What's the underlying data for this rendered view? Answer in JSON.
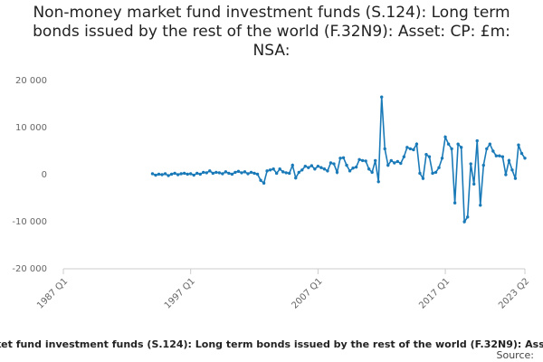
{
  "chart_data": {
    "type": "line",
    "title": "Non-money market fund investment funds (S.124): Long term bonds issued by the rest of the world (F.32N9): Asset: CP: £m: NSA:",
    "source": "Source:",
    "xlim": [
      "1987 Q1",
      "2023 Q2"
    ],
    "xticks": [
      "1987 Q1",
      "1997 Q1",
      "2007 Q1",
      "2017 Q1",
      "2023 Q2"
    ],
    "ylim": [
      -20000,
      20000
    ],
    "yticks": [
      {
        "value": -20000,
        "label": "-20 000"
      },
      {
        "value": -10000,
        "label": "-10 000"
      },
      0,
      {
        "value": 10000,
        "label": "10 000"
      },
      {
        "value": 20000,
        "label": "20 000"
      }
    ],
    "grid": false,
    "x": [
      "1994 Q1",
      "1994 Q2",
      "1994 Q3",
      "1994 Q4",
      "1995 Q1",
      "1995 Q2",
      "1995 Q3",
      "1995 Q4",
      "1996 Q1",
      "1996 Q2",
      "1996 Q3",
      "1996 Q4",
      "1997 Q1",
      "1997 Q2",
      "1997 Q3",
      "1997 Q4",
      "1998 Q1",
      "1998 Q2",
      "1998 Q3",
      "1998 Q4",
      "1999 Q1",
      "1999 Q2",
      "1999 Q3",
      "1999 Q4",
      "2000 Q1",
      "2000 Q2",
      "2000 Q3",
      "2000 Q4",
      "2001 Q1",
      "2001 Q2",
      "2001 Q3",
      "2001 Q4",
      "2002 Q1",
      "2002 Q2",
      "2002 Q3",
      "2002 Q4",
      "2003 Q1",
      "2003 Q2",
      "2003 Q3",
      "2003 Q4",
      "2004 Q1",
      "2004 Q2",
      "2004 Q3",
      "2004 Q4",
      "2005 Q1",
      "2005 Q2",
      "2005 Q3",
      "2005 Q4",
      "2006 Q1",
      "2006 Q2",
      "2006 Q3",
      "2006 Q4",
      "2007 Q1",
      "2007 Q2",
      "2007 Q3",
      "2007 Q4",
      "2008 Q1",
      "2008 Q2",
      "2008 Q3",
      "2008 Q4",
      "2009 Q1",
      "2009 Q2",
      "2009 Q3",
      "2009 Q4",
      "2010 Q1",
      "2010 Q2",
      "2010 Q3",
      "2010 Q4",
      "2011 Q1",
      "2011 Q2",
      "2011 Q3",
      "2011 Q4",
      "2012 Q1",
      "2012 Q2",
      "2012 Q3",
      "2012 Q4",
      "2013 Q1",
      "2013 Q2",
      "2013 Q3",
      "2013 Q4",
      "2014 Q1",
      "2014 Q2",
      "2014 Q3",
      "2014 Q4",
      "2015 Q1",
      "2015 Q2",
      "2015 Q3",
      "2015 Q4",
      "2016 Q1",
      "2016 Q2",
      "2016 Q3",
      "2016 Q4",
      "2017 Q1",
      "2017 Q2",
      "2017 Q3",
      "2017 Q4",
      "2018 Q1",
      "2018 Q2",
      "2018 Q3",
      "2018 Q4",
      "2019 Q1",
      "2019 Q2",
      "2019 Q3",
      "2019 Q4",
      "2020 Q1",
      "2020 Q2",
      "2020 Q3",
      "2020 Q4",
      "2021 Q1",
      "2021 Q2",
      "2021 Q3",
      "2021 Q4",
      "2022 Q1",
      "2022 Q2",
      "2022 Q3",
      "2022 Q4",
      "2023 Q1",
      "2023 Q2"
    ],
    "series": [
      {
        "name": "Non-money market fund investment funds (S.124): Long term bonds issued by the rest of the world (F.32N9): Asset: CP: £m: NSA:",
        "color": "#1a7ab8",
        "values": [
          200,
          -100,
          100,
          0,
          200,
          -200,
          100,
          300,
          0,
          200,
          300,
          100,
          200,
          -100,
          300,
          100,
          500,
          400,
          800,
          300,
          500,
          400,
          200,
          600,
          300,
          100,
          500,
          700,
          400,
          600,
          200,
          500,
          300,
          100,
          -1200,
          -1800,
          800,
          1000,
          1200,
          300,
          1200,
          600,
          400,
          300,
          2000,
          -700,
          500,
          1000,
          1800,
          1500,
          1900,
          1200,
          1800,
          1500,
          1200,
          800,
          2500,
          2300,
          500,
          3500,
          3600,
          2000,
          800,
          1400,
          1600,
          3200,
          3000,
          2900,
          1200,
          500,
          3000,
          -1500,
          16500,
          5500,
          2000,
          3000,
          2500,
          2800,
          2400,
          3800,
          5800,
          5500,
          5300,
          6500,
          300,
          -800,
          4300,
          3800,
          300,
          500,
          1500,
          3500,
          8000,
          6500,
          5500,
          -6000,
          6500,
          5800,
          -10000,
          -9000,
          2300,
          -2000,
          7200,
          -6500,
          2000,
          5500,
          6500,
          5000,
          4000,
          4000,
          3800,
          0,
          3000,
          1000,
          -800,
          6300,
          4500,
          3500
        ]
      }
    ]
  }
}
